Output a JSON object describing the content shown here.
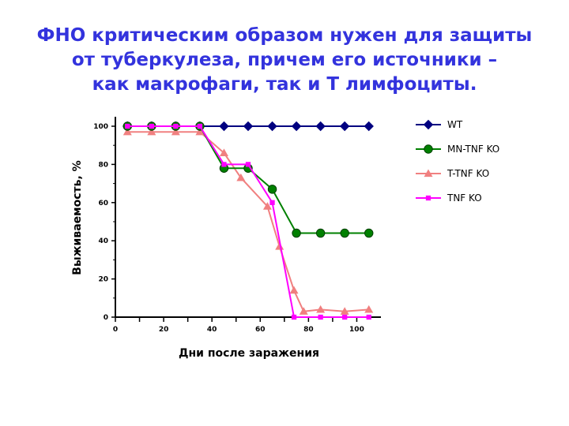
{
  "slide": {
    "title_lines": [
      "ФНО критическим образом нужен для защиты",
      "от туберкулеза, причем его источники –",
      "как макрофаги, так и Т лимфоциты."
    ]
  },
  "chart_data": {
    "type": "line",
    "title": "",
    "xlabel": "Дни после заражения",
    "ylabel": "Выживаемость, %",
    "xlim": [
      0,
      110
    ],
    "ylim": [
      0,
      100
    ],
    "x_ticks": [
      0,
      20,
      40,
      60,
      80,
      100
    ],
    "y_ticks": [
      0,
      20,
      40,
      60,
      80,
      100
    ],
    "grid": false,
    "legend_position": "right",
    "series": [
      {
        "name": "WT",
        "color": "#000080",
        "marker": "diamond",
        "x": [
          5,
          15,
          25,
          35,
          45,
          55,
          65,
          75,
          85,
          95,
          105
        ],
        "y": [
          100,
          100,
          100,
          100,
          100,
          100,
          100,
          100,
          100,
          100,
          100
        ]
      },
      {
        "name": "MN-TNF KO",
        "color": "#008000",
        "marker": "circle",
        "x": [
          5,
          15,
          25,
          35,
          45,
          55,
          65,
          75,
          85,
          95,
          105
        ],
        "y": [
          100,
          100,
          100,
          100,
          78,
          78,
          67,
          44,
          44,
          44,
          44
        ]
      },
      {
        "name": "T-TNF KO",
        "color": "#f08080",
        "marker": "triangle",
        "x": [
          5,
          15,
          25,
          35,
          45,
          52,
          63,
          68,
          74,
          78,
          85,
          95,
          105
        ],
        "y": [
          97,
          97,
          97,
          97,
          86,
          73,
          58,
          37,
          14,
          3,
          4,
          3,
          4
        ]
      },
      {
        "name": "TNF KO",
        "color": "#ff00ff",
        "marker": "square",
        "x": [
          5,
          15,
          25,
          35,
          45,
          55,
          65,
          74,
          85,
          95,
          105
        ],
        "y": [
          100,
          100,
          100,
          100,
          80,
          80,
          60,
          0,
          0,
          0,
          0
        ]
      }
    ]
  }
}
